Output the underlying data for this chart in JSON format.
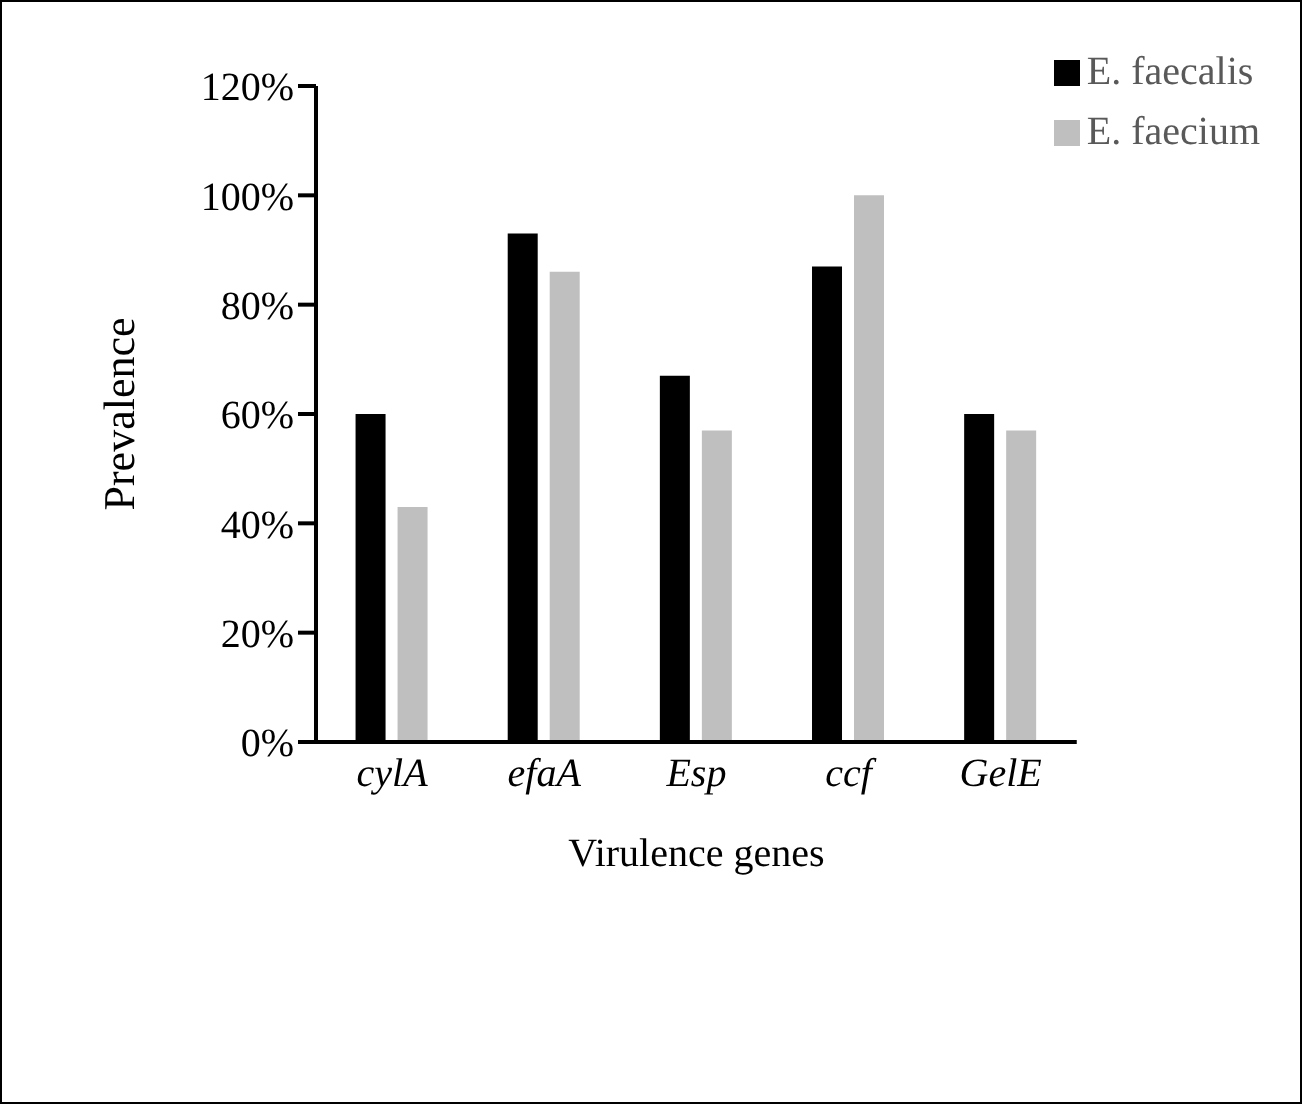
{
  "chart_data": {
    "type": "bar",
    "xlabel": "Virulence genes",
    "ylabel": "Prevalence",
    "categories": [
      "cylA",
      "efaA",
      "Esp",
      "ccf",
      "GelE"
    ],
    "series": [
      {
        "name": "E. faecalis",
        "color": "#000000",
        "values": [
          60,
          93,
          67,
          87,
          60
        ]
      },
      {
        "name": "E. faecium",
        "color": "#bfbfbf",
        "values": [
          43,
          86,
          57,
          100,
          57
        ]
      }
    ],
    "ylim": [
      0,
      120
    ],
    "yticks": [
      {
        "value": 0,
        "label": "0%"
      },
      {
        "value": 20,
        "label": "20%"
      },
      {
        "value": 40,
        "label": "40%"
      },
      {
        "value": 60,
        "label": "60%"
      },
      {
        "value": 80,
        "label": "80%"
      },
      {
        "value": 100,
        "label": "100%"
      },
      {
        "value": 120,
        "label": "120%"
      }
    ],
    "legend": "top right",
    "grid": false
  }
}
